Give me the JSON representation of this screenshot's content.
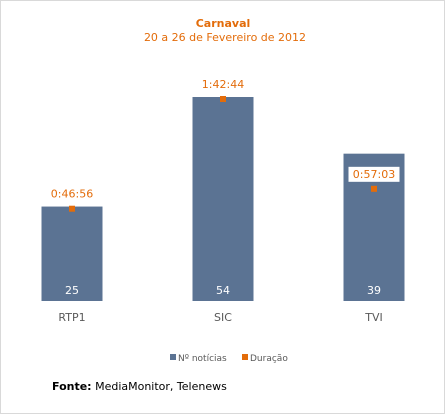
{
  "chart_data": {
    "type": "bar",
    "title": "Carnaval",
    "subtitle": "20 a 26 de Fevereiro de 2012",
    "categories": [
      "RTP1",
      "SIC",
      "TVI"
    ],
    "series": [
      {
        "name": "Nº notícias",
        "values": [
          25,
          54,
          39
        ],
        "color": "#5b7393",
        "kind": "bar"
      },
      {
        "name": "Duração",
        "values": [
          "0:46:56",
          "1:42:44",
          "0:57:03"
        ],
        "seconds": [
          2816,
          6164,
          3423
        ],
        "color": "#e36c0a",
        "kind": "marker"
      }
    ],
    "ylim": [
      0,
      54
    ],
    "grid": false,
    "legend_position": "bottom"
  },
  "source": {
    "label": "Fonte:",
    "text": " MediaMonitor, Telenews"
  }
}
